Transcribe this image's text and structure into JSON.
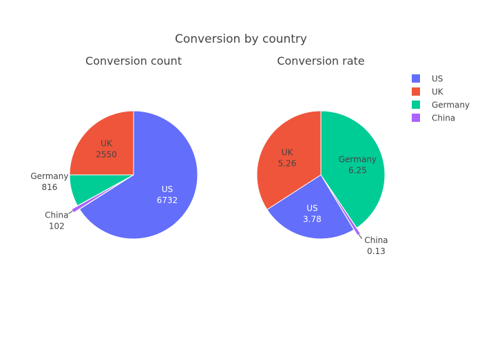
{
  "title": "Conversion by country",
  "legend_placement": "top-right",
  "colors": {
    "US": "#636efa",
    "UK": "#ef553b",
    "Germany": "#00cc96",
    "China": "#ab63fa"
  },
  "legend": [
    "US",
    "UK",
    "Germany",
    "China"
  ],
  "chart_data": [
    {
      "type": "pie",
      "title": "Conversion count",
      "direction": "clockwise",
      "start_angle_deg": 0,
      "pulled": [
        "China"
      ],
      "slices": [
        {
          "label": "US",
          "value": 6732,
          "value_text": "6732",
          "text_position": "inside"
        },
        {
          "label": "China",
          "value": 102,
          "value_text": "102",
          "text_position": "outside"
        },
        {
          "label": "Germany",
          "value": 816,
          "value_text": "816",
          "text_position": "outside"
        },
        {
          "label": "UK",
          "value": 2550,
          "value_text": "2550",
          "text_position": "inside"
        }
      ]
    },
    {
      "type": "pie",
      "title": "Conversion rate",
      "direction": "clockwise",
      "start_angle_deg": 0,
      "pulled": [
        "China"
      ],
      "slices": [
        {
          "label": "Germany",
          "value": 6.25,
          "value_text": "6.25",
          "text_position": "inside"
        },
        {
          "label": "China",
          "value": 0.13,
          "value_text": "0.13",
          "text_position": "outside"
        },
        {
          "label": "US",
          "value": 3.78,
          "value_text": "3.78",
          "text_position": "inside"
        },
        {
          "label": "UK",
          "value": 5.26,
          "value_text": "5.26",
          "text_position": "inside"
        }
      ]
    }
  ]
}
